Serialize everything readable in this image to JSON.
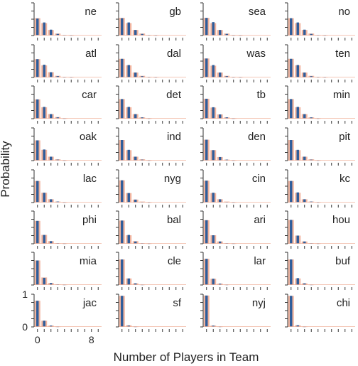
{
  "chart_data": {
    "type": "bar",
    "layout": "small-multiples grid, 8 rows x 4 columns",
    "ylabel": "Probability",
    "xlabel": "Number of Players in Team",
    "x": [
      0,
      1,
      2,
      3,
      4,
      5,
      6,
      7,
      8,
      9
    ],
    "xlim": [
      -0.5,
      9.5
    ],
    "ylim": [
      0,
      1
    ],
    "y_tick_labels": [
      "0",
      "1"
    ],
    "x_tick_labels": [
      "0",
      "8"
    ],
    "x_tick_label_values": [
      0,
      8
    ],
    "grid": false,
    "legend": "none",
    "colors": {
      "observed": "#2e5d9b",
      "model": "#f0b49f",
      "axis": "#333333"
    },
    "teams": [
      {
        "name": "ne",
        "observed": [
          0.52,
          0.4,
          0.18,
          0.05,
          0.02,
          0.01,
          0,
          0,
          0,
          0
        ],
        "model": [
          0.53,
          0.38,
          0.17,
          0.06,
          0.02,
          0.01,
          0,
          0,
          0,
          0
        ]
      },
      {
        "name": "gb",
        "observed": [
          0.53,
          0.4,
          0.17,
          0.05,
          0.02,
          0.01,
          0,
          0,
          0,
          0
        ],
        "model": [
          0.54,
          0.38,
          0.17,
          0.06,
          0.02,
          0.01,
          0,
          0,
          0,
          0
        ]
      },
      {
        "name": "sea",
        "observed": [
          0.54,
          0.41,
          0.17,
          0.05,
          0.01,
          0.01,
          0,
          0,
          0,
          0
        ],
        "model": [
          0.54,
          0.38,
          0.17,
          0.06,
          0.02,
          0.01,
          0,
          0,
          0,
          0
        ]
      },
      {
        "name": "no",
        "observed": [
          0.53,
          0.4,
          0.18,
          0.05,
          0.02,
          0.01,
          0,
          0,
          0,
          0
        ],
        "model": [
          0.53,
          0.38,
          0.17,
          0.06,
          0.02,
          0.01,
          0,
          0,
          0,
          0
        ]
      },
      {
        "name": "atl",
        "observed": [
          0.56,
          0.39,
          0.16,
          0.04,
          0.01,
          0.01,
          0,
          0,
          0,
          0
        ],
        "model": [
          0.56,
          0.37,
          0.16,
          0.05,
          0.02,
          0.01,
          0,
          0,
          0,
          0
        ]
      },
      {
        "name": "dal",
        "observed": [
          0.57,
          0.38,
          0.15,
          0.04,
          0.01,
          0.01,
          0,
          0,
          0,
          0
        ],
        "model": [
          0.57,
          0.37,
          0.15,
          0.05,
          0.02,
          0.01,
          0,
          0,
          0,
          0
        ]
      },
      {
        "name": "was",
        "observed": [
          0.58,
          0.38,
          0.15,
          0.04,
          0.01,
          0.01,
          0,
          0,
          0,
          0
        ],
        "model": [
          0.58,
          0.36,
          0.15,
          0.05,
          0.02,
          0.01,
          0,
          0,
          0,
          0
        ]
      },
      {
        "name": "ten",
        "observed": [
          0.57,
          0.38,
          0.15,
          0.04,
          0.01,
          0.01,
          0,
          0,
          0,
          0
        ],
        "model": [
          0.57,
          0.37,
          0.15,
          0.05,
          0.02,
          0.01,
          0,
          0,
          0,
          0
        ]
      },
      {
        "name": "car",
        "observed": [
          0.59,
          0.36,
          0.14,
          0.04,
          0.01,
          0,
          0,
          0,
          0,
          0
        ],
        "model": [
          0.59,
          0.35,
          0.14,
          0.05,
          0.01,
          0,
          0,
          0,
          0,
          0
        ]
      },
      {
        "name": "det",
        "observed": [
          0.6,
          0.36,
          0.14,
          0.04,
          0.01,
          0,
          0,
          0,
          0,
          0
        ],
        "model": [
          0.6,
          0.35,
          0.14,
          0.04,
          0.01,
          0,
          0,
          0,
          0,
          0
        ]
      },
      {
        "name": "tb",
        "observed": [
          0.61,
          0.35,
          0.13,
          0.04,
          0.01,
          0,
          0,
          0,
          0,
          0
        ],
        "model": [
          0.61,
          0.34,
          0.13,
          0.04,
          0.01,
          0,
          0,
          0,
          0,
          0
        ]
      },
      {
        "name": "min",
        "observed": [
          0.6,
          0.36,
          0.14,
          0.04,
          0.01,
          0,
          0,
          0,
          0,
          0
        ],
        "model": [
          0.6,
          0.35,
          0.14,
          0.04,
          0.01,
          0,
          0,
          0,
          0,
          0
        ]
      },
      {
        "name": "oak",
        "observed": [
          0.62,
          0.34,
          0.12,
          0.03,
          0.01,
          0,
          0,
          0,
          0,
          0
        ],
        "model": [
          0.62,
          0.33,
          0.12,
          0.04,
          0.01,
          0,
          0,
          0,
          0,
          0
        ]
      },
      {
        "name": "ind",
        "observed": [
          0.63,
          0.33,
          0.12,
          0.03,
          0.01,
          0,
          0,
          0,
          0,
          0
        ],
        "model": [
          0.63,
          0.32,
          0.12,
          0.04,
          0.01,
          0,
          0,
          0,
          0,
          0
        ]
      },
      {
        "name": "den",
        "observed": [
          0.64,
          0.32,
          0.11,
          0.03,
          0.01,
          0,
          0,
          0,
          0,
          0
        ],
        "model": [
          0.64,
          0.32,
          0.11,
          0.03,
          0.01,
          0,
          0,
          0,
          0,
          0
        ]
      },
      {
        "name": "pit",
        "observed": [
          0.63,
          0.33,
          0.12,
          0.03,
          0.01,
          0,
          0,
          0,
          0,
          0
        ],
        "model": [
          0.63,
          0.32,
          0.12,
          0.04,
          0.01,
          0,
          0,
          0,
          0,
          0
        ]
      },
      {
        "name": "lac",
        "observed": [
          0.66,
          0.3,
          0.1,
          0.03,
          0.01,
          0,
          0,
          0,
          0,
          0
        ],
        "model": [
          0.66,
          0.3,
          0.1,
          0.03,
          0.01,
          0,
          0,
          0,
          0,
          0
        ]
      },
      {
        "name": "nyg",
        "observed": [
          0.68,
          0.29,
          0.09,
          0.02,
          0.01,
          0,
          0,
          0,
          0,
          0
        ],
        "model": [
          0.68,
          0.29,
          0.09,
          0.03,
          0.01,
          0,
          0,
          0,
          0,
          0
        ]
      },
      {
        "name": "cin",
        "observed": [
          0.67,
          0.3,
          0.1,
          0.02,
          0.01,
          0,
          0,
          0,
          0,
          0
        ],
        "model": [
          0.67,
          0.29,
          0.1,
          0.03,
          0.01,
          0,
          0,
          0,
          0,
          0
        ]
      },
      {
        "name": "kc",
        "observed": [
          0.66,
          0.31,
          0.1,
          0.03,
          0.01,
          0,
          0,
          0,
          0,
          0
        ],
        "model": [
          0.66,
          0.3,
          0.1,
          0.03,
          0.01,
          0,
          0,
          0,
          0,
          0
        ]
      },
      {
        "name": "phi",
        "observed": [
          0.7,
          0.27,
          0.08,
          0.02,
          0.01,
          0,
          0,
          0,
          0,
          0
        ],
        "model": [
          0.7,
          0.27,
          0.08,
          0.02,
          0.01,
          0,
          0,
          0,
          0,
          0
        ]
      },
      {
        "name": "bal",
        "observed": [
          0.71,
          0.27,
          0.07,
          0.02,
          0.01,
          0,
          0,
          0,
          0,
          0
        ],
        "model": [
          0.71,
          0.26,
          0.08,
          0.02,
          0.01,
          0,
          0,
          0,
          0,
          0
        ]
      },
      {
        "name": "ari",
        "observed": [
          0.72,
          0.26,
          0.07,
          0.02,
          0.01,
          0,
          0,
          0,
          0,
          0
        ],
        "model": [
          0.72,
          0.26,
          0.07,
          0.02,
          0.01,
          0,
          0,
          0,
          0,
          0
        ]
      },
      {
        "name": "hou",
        "observed": [
          0.73,
          0.25,
          0.07,
          0.02,
          0.01,
          0,
          0,
          0,
          0,
          0
        ],
        "model": [
          0.73,
          0.25,
          0.07,
          0.02,
          0.01,
          0,
          0,
          0,
          0,
          0
        ]
      },
      {
        "name": "mia",
        "observed": [
          0.75,
          0.22,
          0.06,
          0.02,
          0.01,
          0,
          0,
          0,
          0,
          0
        ],
        "model": [
          0.75,
          0.23,
          0.06,
          0.02,
          0.01,
          0,
          0,
          0,
          0,
          0
        ]
      },
      {
        "name": "cle",
        "observed": [
          0.78,
          0.2,
          0.05,
          0.01,
          0,
          0,
          0,
          0,
          0,
          0
        ],
        "model": [
          0.78,
          0.2,
          0.05,
          0.01,
          0,
          0,
          0,
          0,
          0,
          0
        ]
      },
      {
        "name": "lar",
        "observed": [
          0.8,
          0.19,
          0.04,
          0.01,
          0,
          0,
          0,
          0,
          0,
          0
        ],
        "model": [
          0.8,
          0.19,
          0.04,
          0.01,
          0,
          0,
          0,
          0,
          0,
          0
        ]
      },
      {
        "name": "buf",
        "observed": [
          0.78,
          0.21,
          0.05,
          0.01,
          0,
          0,
          0,
          0,
          0,
          0
        ],
        "model": [
          0.78,
          0.2,
          0.05,
          0.01,
          0,
          0,
          0,
          0,
          0,
          0
        ]
      },
      {
        "name": "jac",
        "observed": [
          0.8,
          0.19,
          0.04,
          0.01,
          0,
          0,
          0,
          0,
          0,
          0
        ],
        "model": [
          0.8,
          0.19,
          0.04,
          0.01,
          0,
          0,
          0,
          0,
          0,
          0
        ]
      },
      {
        "name": "sf",
        "observed": [
          0.95,
          0.04,
          0.01,
          0,
          0,
          0,
          0,
          0,
          0,
          0
        ],
        "model": [
          0.95,
          0.05,
          0.01,
          0,
          0,
          0,
          0,
          0,
          0,
          0
        ]
      },
      {
        "name": "nyj",
        "observed": [
          0.96,
          0.04,
          0.01,
          0,
          0,
          0,
          0,
          0,
          0,
          0
        ],
        "model": [
          0.96,
          0.04,
          0.01,
          0,
          0,
          0,
          0,
          0,
          0,
          0
        ]
      },
      {
        "name": "chi",
        "observed": [
          0.95,
          0.05,
          0.01,
          0,
          0,
          0,
          0,
          0,
          0,
          0
        ],
        "model": [
          0.95,
          0.05,
          0.01,
          0,
          0,
          0,
          0,
          0,
          0,
          0
        ]
      }
    ]
  }
}
